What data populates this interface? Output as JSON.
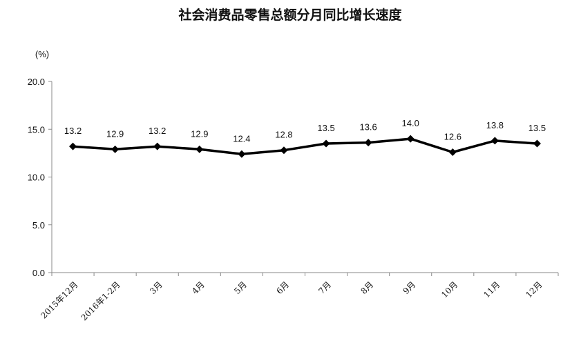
{
  "chart_data": {
    "type": "line",
    "title": "社会消费品零售总额分月同比增长速度",
    "unit_label": "(%)",
    "categories": [
      "2015年12月",
      "2016年1-2月",
      "3月",
      "4月",
      "5月",
      "6月",
      "7月",
      "8月",
      "9月",
      "10月",
      "11月",
      "12月"
    ],
    "values": [
      13.2,
      12.9,
      13.2,
      12.9,
      12.4,
      12.8,
      13.5,
      13.6,
      14.0,
      12.6,
      13.8,
      13.5
    ],
    "value_labels": [
      "13.2",
      "12.9",
      "13.2",
      "12.9",
      "12.4",
      "12.8",
      "13.5",
      "13.6",
      "14.0",
      "12.6",
      "13.8",
      "13.5"
    ],
    "yticks": [
      "0.0",
      "5.0",
      "10.0",
      "15.0",
      "20.0"
    ],
    "ylim": [
      0,
      20
    ],
    "grid": false,
    "legend": false,
    "line_color": "#000000",
    "marker": "diamond"
  }
}
